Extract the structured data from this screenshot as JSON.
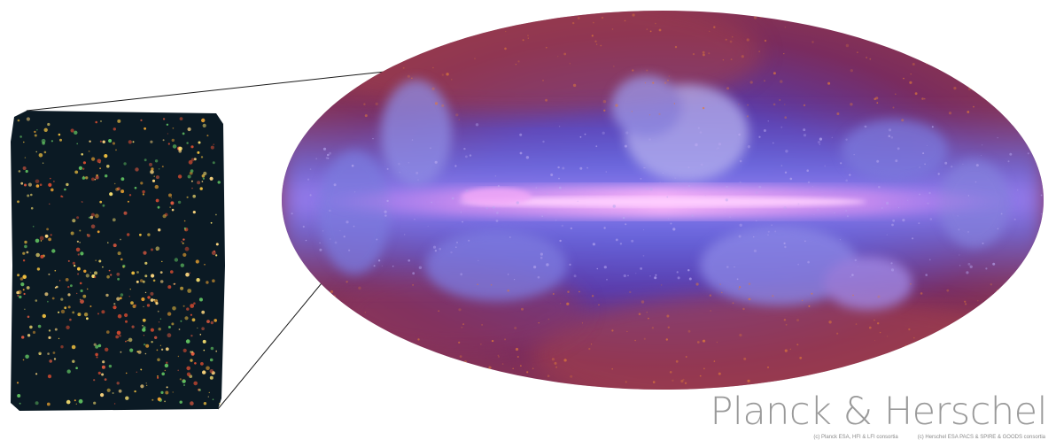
{
  "title": "Planck & Herschel",
  "credits": {
    "left": "(c) Planck ESA, HFI & LFI consortia",
    "right": "(c) Herschel ESA PACS & SPIRE & GOODS consortia"
  },
  "colors": {
    "sky_base": "#7a2c5e",
    "galactic_plane": "#e896f0",
    "dust": "#6e6ad8",
    "inset_bg": "#0b1a24",
    "background": "#ffffff"
  }
}
